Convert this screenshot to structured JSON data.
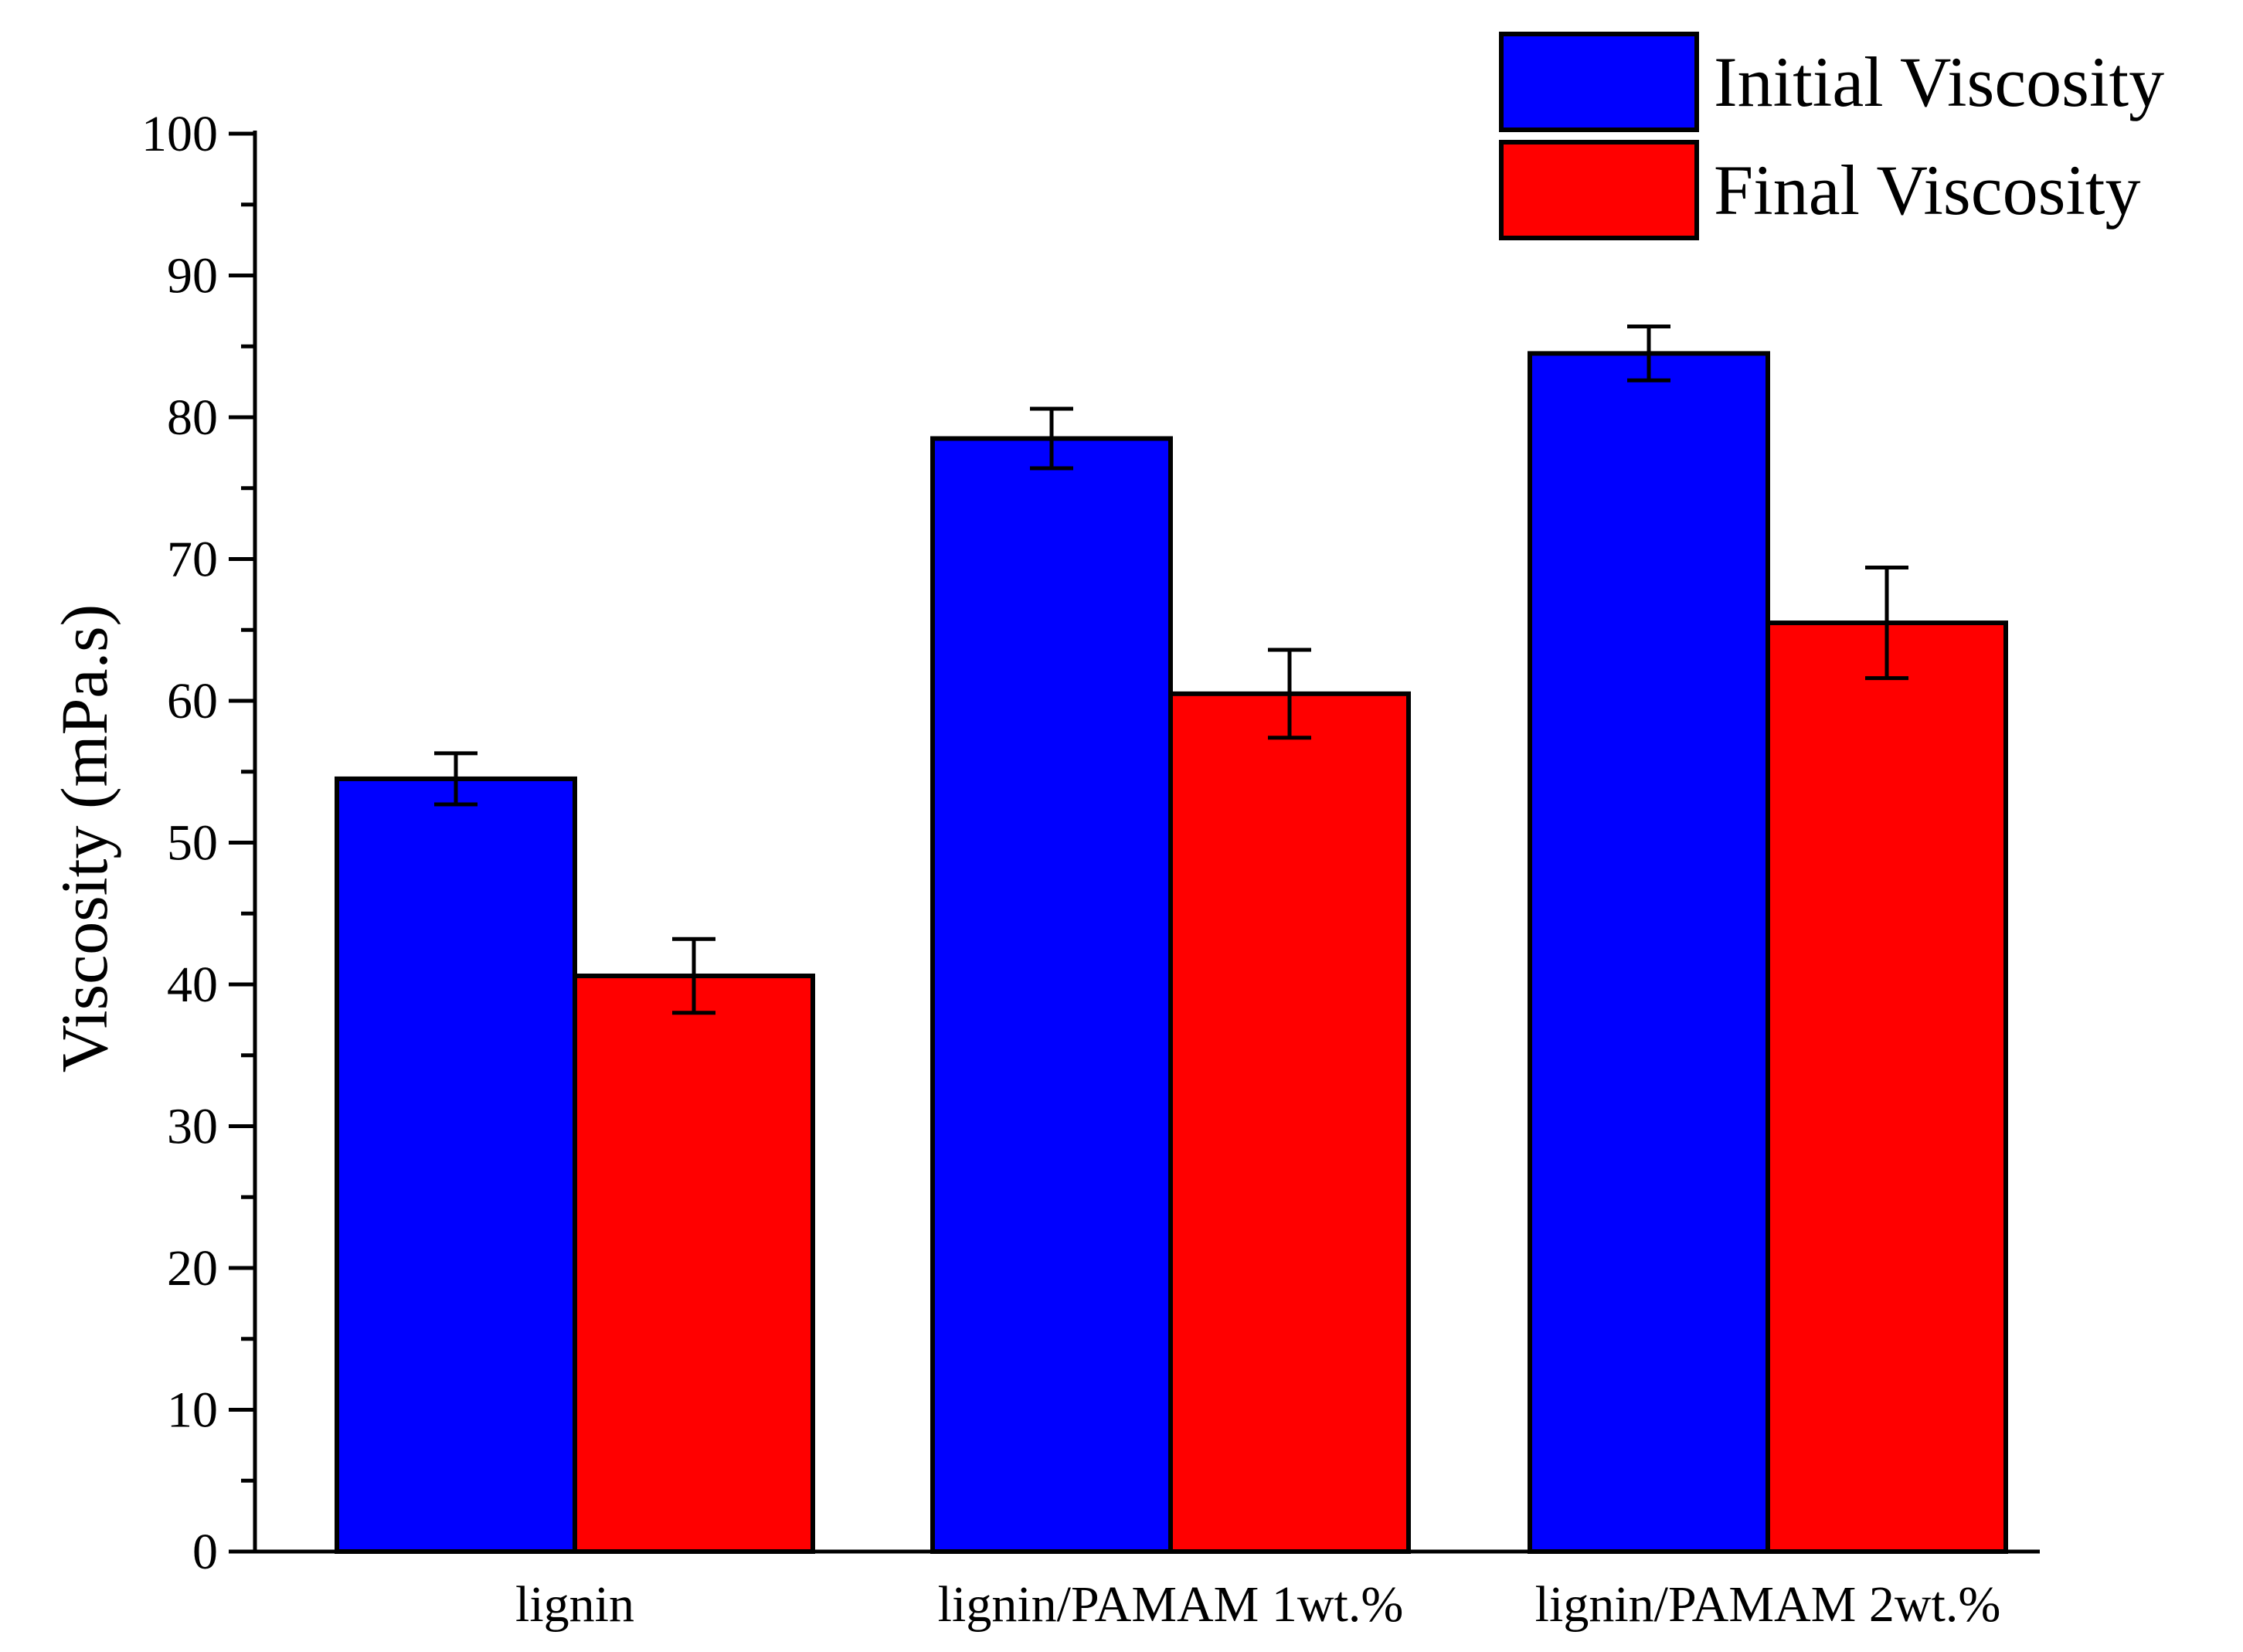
{
  "chart_data": {
    "type": "bar",
    "title": "",
    "xlabel": "",
    "ylabel": "Viscosity (mPa.s)",
    "ylim": [
      0,
      100
    ],
    "yticks": [
      0,
      10,
      20,
      30,
      40,
      50,
      60,
      70,
      80,
      90,
      100
    ],
    "categories": [
      "lignin",
      "lignin/PAMAM 1wt.%",
      "lignin/PAMAM 2wt.%"
    ],
    "series": [
      {
        "name": "Initial Viscosity",
        "color": "#0000FF",
        "values": [
          54.5,
          78.5,
          84.5
        ],
        "errors": [
          1.8,
          2.1,
          1.9
        ]
      },
      {
        "name": "Final Viscosity",
        "color": "#FF0000",
        "values": [
          40.6,
          60.5,
          65.5
        ],
        "errors": [
          2.6,
          3.1,
          3.9
        ]
      }
    ],
    "legend_position": "top-right",
    "grid": false
  }
}
